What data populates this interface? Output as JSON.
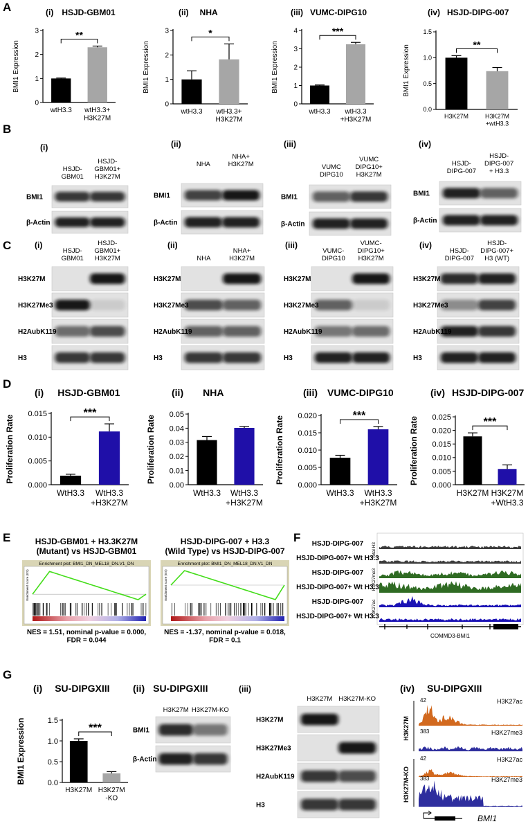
{
  "panel_letters": [
    "A",
    "B",
    "C",
    "D",
    "E",
    "F",
    "G"
  ],
  "chart_data": [
    {
      "type": "bar",
      "label": "(i)",
      "title": "HSJD-GBM01",
      "ylabel": "BMI1 Expression",
      "categories": [
        "wtH3.3",
        "wtH3.3+\nH3K27M"
      ],
      "values": [
        1.0,
        2.3
      ],
      "errors": [
        0.02,
        0.05
      ],
      "colors": [
        "#000000",
        "#a6a6a6"
      ],
      "ylim": [
        0,
        3
      ],
      "yticks": [
        0,
        1,
        2,
        3
      ],
      "significance": "**"
    },
    {
      "type": "bar",
      "label": "(ii)",
      "title": "NHA",
      "ylabel": "BMI1 Expression",
      "categories": [
        "wtH3.3",
        "wtH3.3+\nH3K27M"
      ],
      "values": [
        1.0,
        1.82
      ],
      "errors": [
        0.35,
        0.63
      ],
      "colors": [
        "#000000",
        "#a6a6a6"
      ],
      "ylim": [
        0,
        3
      ],
      "yticks": [
        0,
        1,
        2,
        3
      ],
      "significance": "*"
    },
    {
      "type": "bar",
      "label": "(iii)",
      "title": "VUMC-DIPG10",
      "ylabel": "BMI1 Expression",
      "categories": [
        "wtH3.3",
        "wtH3.3\n+H3K27M"
      ],
      "values": [
        1.0,
        3.25
      ],
      "errors": [
        0.03,
        0.1
      ],
      "colors": [
        "#000000",
        "#a6a6a6"
      ],
      "ylim": [
        0,
        4
      ],
      "yticks": [
        0,
        1,
        2,
        3,
        4
      ],
      "significance": "***"
    },
    {
      "type": "bar",
      "label": "(iv)",
      "title": "HSJD-DIPG-007",
      "ylabel": "BMI1 Expression",
      "categories": [
        "H3K27M",
        "H3K27M\n+wtH3.3"
      ],
      "values": [
        1.0,
        0.74
      ],
      "errors": [
        0.04,
        0.07
      ],
      "colors": [
        "#000000",
        "#a6a6a6"
      ],
      "ylim": [
        0,
        1.5
      ],
      "yticks": [
        {
          "value": 0,
          "label": "0.0"
        },
        0.5,
        {
          "value": 1,
          "label": "1.0"
        },
        1.5
      ],
      "significance": "**"
    },
    {
      "type": "bar",
      "label": "(i)",
      "title": "HSJD-GBM01",
      "ylabel": "Proliferation Rate",
      "categories": [
        "WtH3.3",
        "WtH3.3\n+H3K27M"
      ],
      "values": [
        0.0019,
        0.0112
      ],
      "errors": [
        0.0003,
        0.0016
      ],
      "colors": [
        "#000000",
        "#1f0fa8"
      ],
      "ylim": [
        0,
        0.015
      ],
      "yticks": [
        {
          "value": 0,
          "label": "0.000"
        },
        0.005,
        {
          "value": 0.01,
          "label": "0.010"
        },
        0.015
      ],
      "significance": "***"
    },
    {
      "type": "bar",
      "label": "(ii)",
      "title": "NHA",
      "ylabel": "Proliferation Rate",
      "categories": [
        "WtH3.3",
        "WtH3.3\n+H3K27M"
      ],
      "values": [
        0.0316,
        0.0402
      ],
      "errors": [
        0.0025,
        0.001
      ],
      "colors": [
        "#000000",
        "#1f0fa8"
      ],
      "ylim": [
        0,
        0.05
      ],
      "yticks": [
        {
          "value": 0,
          "label": "0.00"
        },
        0.01,
        0.02,
        0.03,
        0.04,
        0.05
      ]
    },
    {
      "type": "bar",
      "label": "(iii)",
      "title": "VUMC-DIPG10",
      "ylabel": "Proliferation Rate",
      "categories": [
        "WtH3.3",
        "WtH3.3\n+H3K27M"
      ],
      "values": [
        0.0078,
        0.016
      ],
      "errors": [
        0.0007,
        0.0008
      ],
      "colors": [
        "#000000",
        "#1f0fa8"
      ],
      "ylim": [
        0,
        0.02
      ],
      "yticks": [
        {
          "value": 0,
          "label": "0.000"
        },
        0.005,
        {
          "value": 0.01,
          "label": "0.010"
        },
        0.015,
        {
          "value": 0.02,
          "label": "0.020"
        }
      ],
      "significance": "***"
    },
    {
      "type": "bar",
      "label": "(iv)",
      "title": "HSJD-DIPG-007",
      "ylabel": "Proliferation Rate",
      "categories": [
        "H3K27M",
        "H3K27M\n+WtH3.3"
      ],
      "values": [
        0.0178,
        0.0058
      ],
      "errors": [
        0.0013,
        0.0015
      ],
      "colors": [
        "#000000",
        "#1f0fa8"
      ],
      "ylim": [
        0,
        0.025
      ],
      "yticks": [
        {
          "value": 0,
          "label": "0.000"
        },
        0.005,
        {
          "value": 0.01,
          "label": "0.010"
        },
        0.015,
        {
          "value": 0.02,
          "label": "0.020"
        },
        0.025
      ],
      "significance": "***"
    },
    {
      "type": "bar",
      "label": "(i)",
      "title": "SU-DIPGXIII",
      "ylabel": "BMI1 Expression",
      "categories": [
        "H3K27M",
        "H3K27M\n-KO"
      ],
      "values": [
        1.0,
        0.22
      ],
      "errors": [
        0.05,
        0.04
      ],
      "colors": [
        "#000000",
        "#a6a6a6"
      ],
      "ylim": [
        0,
        1.5
      ],
      "yticks": [
        {
          "value": 0,
          "label": "0.0"
        },
        0.5,
        {
          "value": 1,
          "label": "1.0"
        },
        1.5
      ],
      "significance": "***"
    }
  ],
  "blots": [
    {
      "label": "(i)",
      "lanes": [
        "HSJD-\nGBM01",
        "HSJD-\nGBM01+\nH3K27M"
      ],
      "rows": [
        "BMI1",
        "β-Actin"
      ]
    },
    {
      "label": "(ii)",
      "lanes": [
        "NHA",
        "NHA+\nH3K27M"
      ],
      "rows": [
        "BMI1",
        "β-Actin"
      ]
    },
    {
      "label": "(iii)",
      "lanes": [
        "VUMC\nDIPG10",
        "VUMC\nDIPG10+\nH3K27M"
      ],
      "rows": [
        "BMI1",
        "β-Actin"
      ]
    },
    {
      "label": "(iv)",
      "lanes": [
        "HSJD-\nDIPG-007",
        "HSJD-\nDIPG-007\n+ H3.3"
      ],
      "rows": [
        "BMI1",
        "β-Actin"
      ]
    },
    {
      "label": "(i)",
      "lanes": [
        "HSJD-\nGBM01",
        "HSJD-\nGBM01+\nH3K27M"
      ],
      "rows": [
        "H3K27M",
        "H3K27Me3",
        "H2AubK119",
        "H3"
      ]
    },
    {
      "label": "(ii)",
      "lanes": [
        "NHA",
        "NHA+\nH3K27M"
      ],
      "rows": [
        "H3K27M",
        "H3K27Me3",
        "H2AubK119",
        "H3"
      ]
    },
    {
      "label": "(iii)",
      "lanes": [
        "VUMC-\nDIPG10",
        "VUMC-\nDIPG10+\nH3K27M"
      ],
      "rows": [
        "H3K27M",
        "H3K27Me3",
        "H2AubK119",
        "H3"
      ]
    },
    {
      "label": "(iv)",
      "lanes": [
        "HSJD-\nDIPG-007",
        "HSJD-\nDIPG-007+\nH3 (WT)"
      ],
      "rows": [
        "H3K27M",
        "H3K27Me3",
        "H2AubK119",
        "H3"
      ]
    },
    {
      "label": "(ii)",
      "title": "SU-DIPGXIII",
      "lanes": [
        "H3K27M",
        "H3K27M-KO"
      ],
      "rows": [
        "BMI1",
        "β-Actin"
      ]
    },
    {
      "label": "(iii)",
      "lanes": [
        "H3K27M",
        "H3K27M-KO"
      ],
      "rows": [
        "H3K27M",
        "H3K27Me3",
        "H2AubK119",
        "H3"
      ]
    }
  ],
  "gsea": [
    {
      "title": "HSJD-GBM01 + H3.3K27M\n(Mutant) vs HSJD-GBM01",
      "plot_title": "Enrichment plot: BMI1_DN_MEL18_DN.V1_DN",
      "ylabel": "Enrichment score (ES)",
      "stats": "NES = 1.51, nominal p-value = 0.000,\nFDR = 0.044"
    },
    {
      "title": "HSJD-DIPG-007 + H3.3\n(Wild Type) vs HSJD-DIPG-007",
      "plot_title": "Enrichment plot: BMI1_DN_MEL18_DN.V1_DN",
      "ylabel": "Enrichment score (ES)",
      "stats": "NES = -1.37, nominal p-value = 0.018,\nFDR = 0.1"
    }
  ],
  "tracks_f": {
    "rows": [
      {
        "name": "HSJD-DIPG-007",
        "color": "#3c3c3c"
      },
      {
        "name": "HSJD-DIPG-007+ Wt H3.3",
        "color": "#3c3c3c"
      },
      {
        "name": "HSJD-DIPG-007",
        "color": "#2f6b23"
      },
      {
        "name": "HSJD-DIPG-007+ Wt H3.3",
        "color": "#2f6b23"
      },
      {
        "name": "HSJD-DIPG-007",
        "color": "#1b13b5"
      },
      {
        "name": "HSJD-DIPG-007+ Wt H3.3",
        "color": "#1b13b5"
      }
    ],
    "marks": [
      "Total H3",
      "H3K27me3",
      "H3K27ac"
    ],
    "gene": "COMMD3-BMI1"
  },
  "tracks_g": {
    "label": "(iv)",
    "title": "SU-DIPGXIII",
    "groups": [
      {
        "name": "H3K27M",
        "tracks": [
          {
            "range": "42",
            "name": "H3K27ac",
            "color": "#d2691e"
          },
          {
            "range": "383",
            "name": "H3K27me3",
            "color": "#2e2e9e"
          }
        ]
      },
      {
        "name": "H3K27M-KO",
        "tracks": [
          {
            "range": "42",
            "name": "H3K27ac",
            "color": "#d2691e"
          },
          {
            "range": "383",
            "name": "H3K27me3",
            "color": "#2e2e9e"
          }
        ]
      }
    ],
    "gene": "BMI1"
  }
}
